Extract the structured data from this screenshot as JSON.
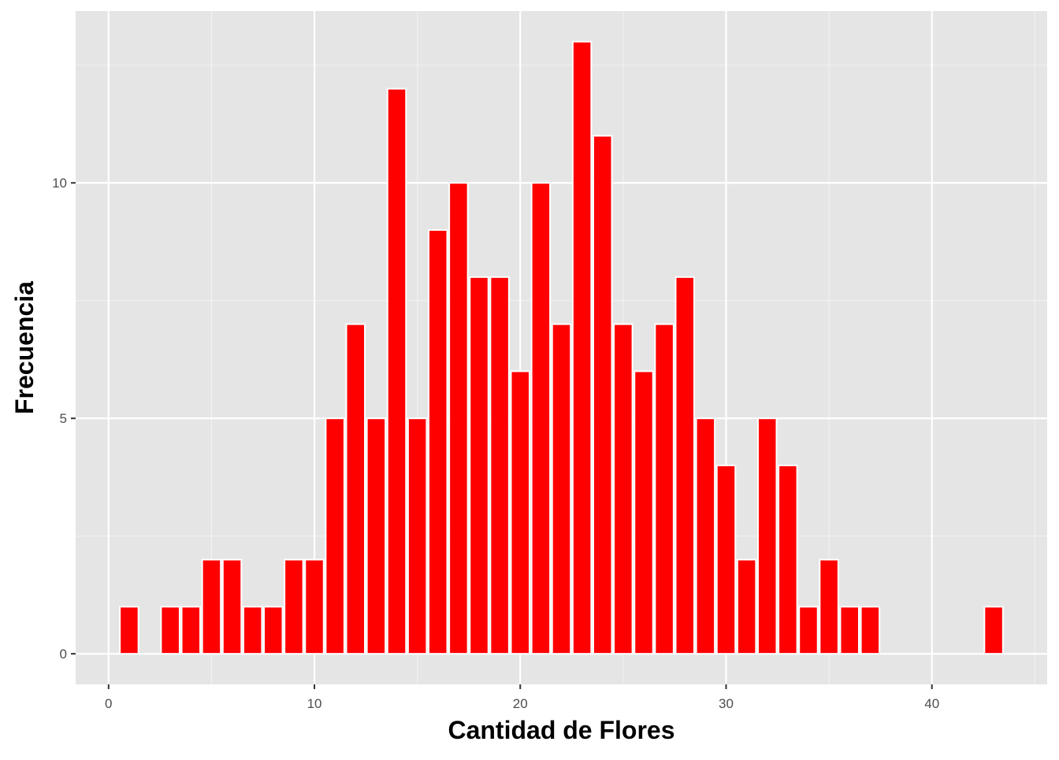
{
  "chart_data": {
    "type": "bar",
    "title": "",
    "xlabel": "Cantidad de Flores",
    "ylabel": "Frecuencia",
    "x": [
      1,
      2,
      3,
      4,
      5,
      6,
      7,
      8,
      9,
      10,
      11,
      12,
      13,
      14,
      15,
      16,
      17,
      18,
      19,
      20,
      21,
      22,
      23,
      24,
      25,
      26,
      27,
      28,
      29,
      30,
      31,
      32,
      33,
      34,
      35,
      36,
      37,
      38,
      39,
      40,
      41,
      42,
      43
    ],
    "values": [
      1,
      0,
      1,
      1,
      2,
      2,
      1,
      1,
      2,
      2,
      5,
      7,
      5,
      12,
      5,
      9,
      10,
      8,
      8,
      6,
      10,
      7,
      13,
      11,
      7,
      6,
      7,
      8,
      5,
      4,
      2,
      5,
      4,
      1,
      2,
      1,
      1,
      0,
      0,
      0,
      0,
      0,
      1
    ],
    "xlim": [
      -1.6,
      45.6
    ],
    "ylim": [
      -0.65,
      13.65
    ],
    "x_ticks": [
      0,
      10,
      20,
      30,
      40
    ],
    "x_tick_labels": [
      "0",
      "10",
      "20",
      "30",
      "40"
    ],
    "y_ticks": [
      0,
      5,
      10
    ],
    "y_tick_labels": [
      "0",
      "5",
      "10"
    ],
    "grid": true,
    "legend": "none",
    "colors": {
      "bar_fill": "#ff0000",
      "bar_outline": "#ffffff",
      "panel_background": "#e5e5e5",
      "grid_major": "#ffffff",
      "grid_minor": "#f2f2f2",
      "tick": "#333333"
    }
  }
}
